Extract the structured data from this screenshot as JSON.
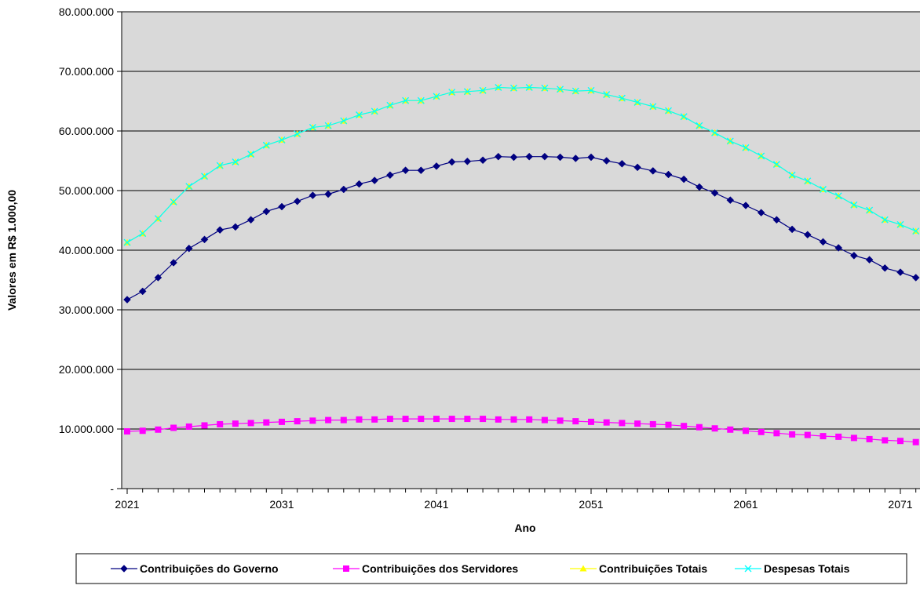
{
  "chart_data": {
    "type": "line",
    "xlabel": "Ano",
    "ylabel": "Valores em R$ 1.000,00",
    "x_start": 2021,
    "x_end": 2072,
    "x_tick_values": [
      2021,
      2031,
      2041,
      2051,
      2061,
      2071
    ],
    "x_tick_labels": [
      "2021",
      "2031",
      "2041",
      "2051",
      "2061",
      "2071"
    ],
    "ylim": [
      0,
      80000000
    ],
    "y_tick_values": [
      0,
      10000000,
      20000000,
      30000000,
      40000000,
      50000000,
      60000000,
      70000000,
      80000000
    ],
    "y_tick_labels": [
      "-",
      "10.000.000",
      "20.000.000",
      "30.000.000",
      "40.000.000",
      "50.000.000",
      "60.000.000",
      "70.000.000",
      "80.000.000"
    ],
    "grid": "horizontal",
    "plot_background": "#D9D9D9",
    "legend_position": "bottom",
    "series": [
      {
        "name": "Contribuições do Governo",
        "color": "#000080",
        "marker": "diamond",
        "values": [
          31700000,
          33100000,
          35400000,
          37900000,
          40300000,
          41800000,
          43400000,
          43900000,
          45100000,
          46500000,
          47300000,
          48200000,
          49200000,
          49400000,
          50200000,
          51100000,
          51700000,
          52600000,
          53400000,
          53400000,
          54100000,
          54800000,
          54900000,
          55100000,
          55700000,
          55600000,
          55700000,
          55700000,
          55600000,
          55400000,
          55600000,
          55000000,
          54500000,
          53900000,
          53300000,
          52700000,
          51900000,
          50600000,
          49600000,
          48400000,
          47500000,
          46300000,
          45100000,
          43500000,
          42600000,
          41400000,
          40400000,
          39100000,
          38400000,
          37000000,
          36300000,
          35400000
        ]
      },
      {
        "name": "Contribuições dos Servidores",
        "color": "#FF00FF",
        "marker": "square",
        "values": [
          9600000,
          9700000,
          9900000,
          10200000,
          10400000,
          10600000,
          10800000,
          10900000,
          11000000,
          11100000,
          11200000,
          11300000,
          11400000,
          11500000,
          11500000,
          11600000,
          11600000,
          11700000,
          11700000,
          11700000,
          11700000,
          11700000,
          11700000,
          11700000,
          11600000,
          11600000,
          11600000,
          11500000,
          11400000,
          11300000,
          11200000,
          11100000,
          11000000,
          10900000,
          10800000,
          10700000,
          10500000,
          10300000,
          10100000,
          9900000,
          9700000,
          9500000,
          9300000,
          9100000,
          9000000,
          8800000,
          8700000,
          8500000,
          8300000,
          8100000,
          8000000,
          7800000
        ]
      },
      {
        "name": "Contribuições Totais",
        "color": "#FFFF00",
        "marker": "triangle",
        "values": [
          41300000,
          42800000,
          45300000,
          48100000,
          50700000,
          52400000,
          54200000,
          54800000,
          56100000,
          57600000,
          58500000,
          59500000,
          60600000,
          60900000,
          61700000,
          62700000,
          63300000,
          64300000,
          65100000,
          65100000,
          65800000,
          66500000,
          66600000,
          66800000,
          67300000,
          67200000,
          67300000,
          67200000,
          67000000,
          66700000,
          66800000,
          66100000,
          65500000,
          64800000,
          64100000,
          63400000,
          62400000,
          60900000,
          59700000,
          58300000,
          57200000,
          55800000,
          54400000,
          52600000,
          51600000,
          50200000,
          49100000,
          47600000,
          46700000,
          45100000,
          44300000,
          43200000
        ]
      },
      {
        "name": "Despesas Totais",
        "color": "#00FFFF",
        "marker": "x",
        "values": [
          41300000,
          42800000,
          45300000,
          48100000,
          50700000,
          52400000,
          54200000,
          54800000,
          56100000,
          57600000,
          58500000,
          59500000,
          60600000,
          60900000,
          61700000,
          62700000,
          63300000,
          64300000,
          65100000,
          65100000,
          65800000,
          66500000,
          66600000,
          66800000,
          67300000,
          67200000,
          67300000,
          67200000,
          67000000,
          66700000,
          66800000,
          66100000,
          65500000,
          64800000,
          64100000,
          63400000,
          62400000,
          60900000,
          59700000,
          58300000,
          57200000,
          55800000,
          54400000,
          52600000,
          51600000,
          50200000,
          49100000,
          47600000,
          46700000,
          45100000,
          44300000,
          43200000
        ]
      }
    ]
  }
}
